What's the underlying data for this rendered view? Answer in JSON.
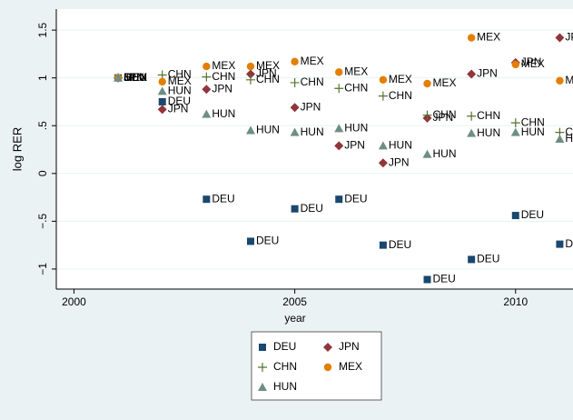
{
  "chart_data": {
    "type": "scatter",
    "x_label": "year",
    "y_label": "log RER",
    "x": [
      2001,
      2002,
      2003,
      2004,
      2005,
      2006,
      2007,
      2008,
      2009,
      2010,
      2011
    ],
    "xlim": [
      1999.6,
      2011.3
    ],
    "ylim": [
      -1.21,
      1.72
    ],
    "xticks": [
      2000,
      2005,
      2010
    ],
    "yticks": [
      {
        "value": -1,
        "label": "−1"
      },
      {
        "value": -0.5,
        "label": "−.5"
      },
      0,
      {
        "value": 0.5,
        "label": ".5"
      },
      1,
      1.5
    ],
    "grid": true,
    "series": [
      {
        "name": "DEU",
        "color": "#1a476f",
        "marker": "square",
        "values": [
          1.0,
          0.75,
          -0.27,
          -0.71,
          -0.37,
          -0.27,
          -0.75,
          -1.11,
          -0.9,
          -0.44,
          -0.74
        ]
      },
      {
        "name": "JPN",
        "color": "#90353b",
        "marker": "diamond",
        "values": [
          1.0,
          0.67,
          0.88,
          1.04,
          0.69,
          0.29,
          0.11,
          0.58,
          1.04,
          1.16,
          1.42
        ]
      },
      {
        "name": "CHN",
        "color": "#55752f",
        "marker": "plus",
        "values": [
          1.0,
          1.03,
          1.01,
          0.98,
          0.95,
          0.89,
          0.81,
          0.61,
          0.6,
          0.53,
          0.43
        ]
      },
      {
        "name": "MEX",
        "color": "#e37e00",
        "marker": "circle",
        "values": [
          1.0,
          0.96,
          1.12,
          1.12,
          1.17,
          1.06,
          0.98,
          0.94,
          1.42,
          1.14,
          0.97
        ]
      },
      {
        "name": "HUN",
        "color": "#6e8e84",
        "marker": "triangle",
        "values": [
          1.0,
          0.86,
          0.62,
          0.45,
          0.43,
          0.47,
          0.29,
          0.2,
          0.42,
          0.43,
          0.36
        ]
      }
    ]
  }
}
